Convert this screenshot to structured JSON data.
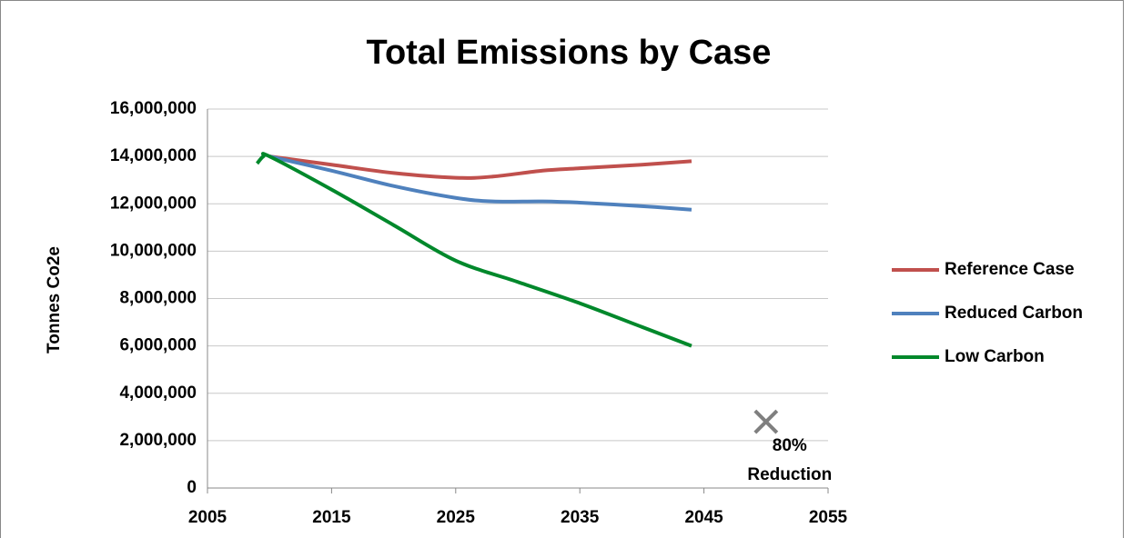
{
  "chart_data": {
    "type": "line",
    "title": "Total Emissions by Case",
    "y_label": "Tonnes Co2e",
    "xlim": [
      2005,
      2055
    ],
    "xticks": [
      2005,
      2015,
      2025,
      2035,
      2045,
      2055
    ],
    "ylim": [
      0,
      16000000
    ],
    "yticks": [
      0,
      {
        "value": 2000000,
        "label": "2,000,000"
      },
      {
        "value": 4000000,
        "label": "4,000,000"
      },
      {
        "value": 6000000,
        "label": "6,000,000"
      },
      {
        "value": 8000000,
        "label": "8,000,000"
      },
      {
        "value": 10000000,
        "label": "10,000,000"
      },
      {
        "value": 12000000,
        "label": "12,000,000"
      },
      {
        "value": 14000000,
        "label": "14,000,000"
      },
      {
        "value": 16000000,
        "label": "16,000,000"
      }
    ],
    "grid": true,
    "legend": "right",
    "series": [
      {
        "name": "Reference Case",
        "color": "#c0504d",
        "x": [
          2010,
          2015,
          2020,
          2025,
          2028,
          2032,
          2035,
          2040,
          2044
        ],
        "values": [
          14000000,
          13650000,
          13300000,
          13100000,
          13150000,
          13400000,
          13500000,
          13650000,
          13800000
        ]
      },
      {
        "name": "Reduced Carbon",
        "color": "#4f81bd",
        "x": [
          2010,
          2015,
          2020,
          2025,
          2028,
          2032,
          2035,
          2040,
          2044
        ],
        "values": [
          14000000,
          13400000,
          12750000,
          12250000,
          12100000,
          12100000,
          12050000,
          11900000,
          11750000
        ]
      },
      {
        "name": "Low Carbon",
        "color": "#00882b",
        "x": [
          2009,
          2009.5,
          2010,
          2015,
          2020,
          2025,
          2030,
          2035,
          2040,
          2044
        ],
        "values": [
          13700000,
          14000000,
          14000000,
          12600000,
          11100000,
          9600000,
          8700000,
          7800000,
          6800000,
          6000000
        ]
      }
    ],
    "target": {
      "x": 2050,
      "value": 2800000,
      "color": "#7f7f7f",
      "label_lines": [
        "80%",
        "Reduction"
      ]
    }
  }
}
